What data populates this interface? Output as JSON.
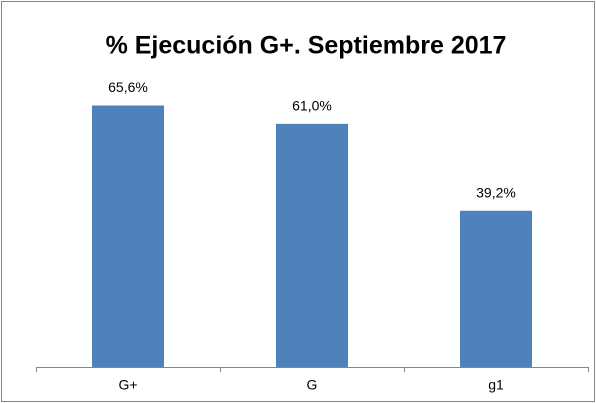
{
  "chart_data": {
    "type": "bar",
    "title": "% Ejecución G+. Septiembre 2017",
    "categories": [
      "G+",
      "G",
      "g1"
    ],
    "values": [
      65.6,
      61.0,
      39.2
    ],
    "value_labels": [
      "65,6%",
      "61,0%",
      "39,2%"
    ],
    "color": "#4f81bd",
    "ylim": [
      0,
      70
    ]
  }
}
